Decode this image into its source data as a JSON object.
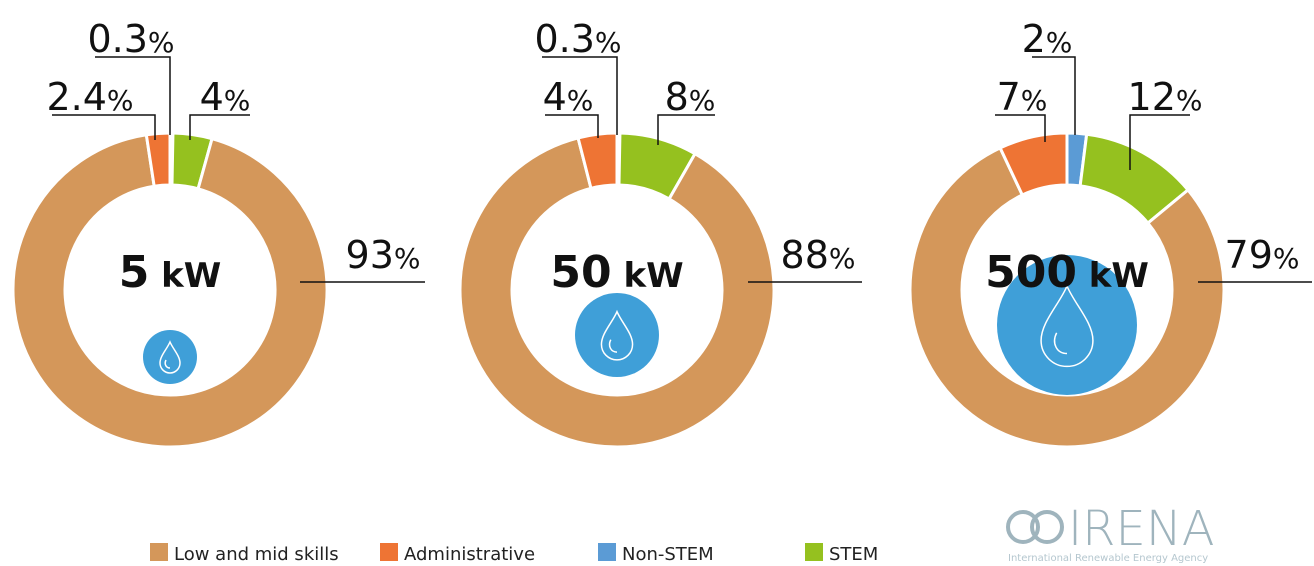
{
  "chart_data": [
    {
      "type": "donut",
      "center_label": "5 kW",
      "categories": [
        "Low and mid skills",
        "Administrative",
        "Non-STEM",
        "STEM"
      ],
      "colors": [
        "#d4975a",
        "#ee7434",
        "#5b9bd5",
        "#95c11f"
      ],
      "values": [
        93,
        2.4,
        0.3,
        4
      ],
      "value_labels": [
        "93%",
        "2.4%",
        "0.3%",
        "4%"
      ]
    },
    {
      "type": "donut",
      "center_label": "50 kW",
      "categories": [
        "Low and mid skills",
        "Administrative",
        "Non-STEM",
        "STEM"
      ],
      "colors": [
        "#d4975a",
        "#ee7434",
        "#5b9bd5",
        "#95c11f"
      ],
      "values": [
        88,
        4,
        0.3,
        8
      ],
      "value_labels": [
        "88%",
        "4%",
        "0.3%",
        "8%"
      ]
    },
    {
      "type": "donut",
      "center_label": "500 kW",
      "categories": [
        "Low and mid skills",
        "Administrative",
        "Non-STEM",
        "STEM"
      ],
      "colors": [
        "#d4975a",
        "#ee7434",
        "#5b9bd5",
        "#95c11f"
      ],
      "values": [
        79,
        7,
        2,
        12
      ],
      "value_labels": [
        "79%",
        "7%",
        "2%",
        "12%"
      ]
    }
  ],
  "logo": {
    "name": "IRENA",
    "subtitle": "International Renewable Energy Agency"
  }
}
